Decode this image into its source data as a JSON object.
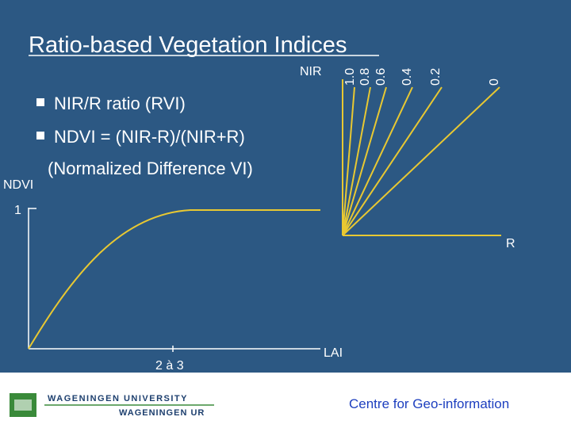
{
  "header": {
    "title": "Ratio-based Vegetation Indices"
  },
  "bullets": [
    "NIR/R ratio (RVI)",
    "NDVI = (NIR-R)/(NIR+R)"
  ],
  "bullet_note": "(Normalized Difference VI)",
  "ratio_diagram": {
    "y_label": "NIR",
    "x_label": "R",
    "ratio_labels": [
      "1.0",
      "0.8",
      "0.6",
      "0.4",
      "0.2",
      "0"
    ]
  },
  "ndvi_diagram": {
    "y_label": "NDVI",
    "y_tick": "1",
    "x_tick": "2 à 3",
    "x_label": "LAI"
  },
  "footer": {
    "university": "WAGENINGEN UNIVERSITY",
    "ur": "WAGENINGEN UR",
    "centre": "Centre for Geo-information"
  }
}
